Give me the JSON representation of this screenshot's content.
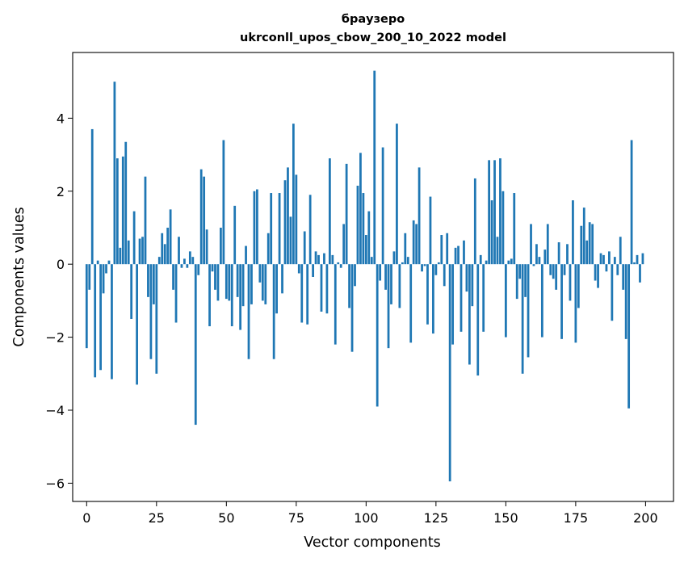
{
  "chart_data": {
    "type": "bar",
    "title": "браузеро",
    "subtitle": "ukrconll_upos_cbow_200_10_2022 model",
    "xlabel": "Vector components",
    "ylabel": "Components values",
    "xlim": [
      -5,
      210
    ],
    "ylim": [
      -6.5,
      5.8
    ],
    "xticks": [
      0,
      25,
      50,
      75,
      100,
      125,
      150,
      175,
      200
    ],
    "yticks": [
      -6,
      -4,
      -2,
      0,
      2,
      4
    ],
    "ytick_labels": [
      "−6",
      "−4",
      "−2",
      "0",
      "2",
      "4"
    ],
    "grid": false,
    "legend": "none",
    "bar_color": "#1f77b4",
    "series": [
      {
        "values": [
          -2.3,
          -0.7,
          3.7,
          -3.1,
          0.1,
          -2.9,
          -0.8,
          -0.25,
          0.1,
          -3.15,
          5.0,
          2.9,
          0.45,
          2.95,
          3.35,
          0.65,
          -1.5,
          1.45,
          -3.3,
          0.7,
          0.75,
          2.4,
          -0.9,
          -2.6,
          -1.1,
          -3.0,
          0.2,
          0.85,
          0.55,
          1.0,
          1.5,
          -0.7,
          -1.6,
          0.75,
          -0.1,
          0.15,
          -0.1,
          0.35,
          0.2,
          -4.4,
          -0.3,
          2.6,
          2.4,
          0.95,
          -1.7,
          -0.2,
          -0.7,
          -1.0,
          1.0,
          3.4,
          -0.95,
          -1.0,
          -1.7,
          1.6,
          -0.9,
          -1.8,
          -1.15,
          0.5,
          -2.6,
          -1.1,
          2.0,
          2.05,
          -0.5,
          -1.0,
          -1.1,
          0.85,
          1.95,
          -2.6,
          -1.35,
          1.95,
          -0.8,
          2.3,
          2.65,
          1.3,
          3.85,
          2.45,
          -0.25,
          -1.6,
          0.9,
          -1.65,
          1.9,
          -0.35,
          0.35,
          0.25,
          -1.3,
          0.3,
          -1.35,
          2.9,
          0.25,
          -2.2,
          0.05,
          -0.1,
          1.1,
          2.75,
          -1.2,
          -2.4,
          -0.6,
          2.15,
          3.05,
          1.95,
          0.8,
          1.45,
          0.2,
          5.3,
          -3.9,
          -0.45,
          3.2,
          -0.7,
          -2.3,
          -1.1,
          0.35,
          3.85,
          -1.2,
          0.05,
          0.85,
          0.2,
          -2.15,
          1.2,
          1.1,
          2.65,
          -0.2,
          -0.05,
          -1.65,
          1.85,
          -1.9,
          -0.3,
          0.05,
          0.8,
          -0.6,
          0.85,
          -5.95,
          -2.2,
          0.45,
          0.5,
          -1.85,
          0.65,
          -0.75,
          -2.75,
          -1.15,
          2.35,
          -3.05,
          0.25,
          -1.85,
          0.1,
          2.85,
          1.75,
          2.85,
          0.75,
          2.9,
          2.0,
          -2.0,
          0.1,
          0.15,
          1.95,
          -0.95,
          -0.4,
          -3.0,
          -0.9,
          -2.55,
          1.1,
          -0.05,
          0.55,
          0.2,
          -2.0,
          0.4,
          1.1,
          -0.3,
          -0.4,
          -0.7,
          0.6,
          -2.05,
          -0.3,
          0.55,
          -1.0,
          1.75,
          -2.15,
          -1.2,
          1.05,
          1.55,
          0.65,
          1.15,
          1.1,
          -0.45,
          -0.65,
          0.3,
          0.25,
          -0.2,
          0.35,
          -1.55,
          0.2,
          -0.3,
          0.75,
          -0.7,
          -2.05,
          -3.95,
          3.4,
          0.05,
          0.25,
          -0.5,
          0.3
        ]
      }
    ]
  }
}
